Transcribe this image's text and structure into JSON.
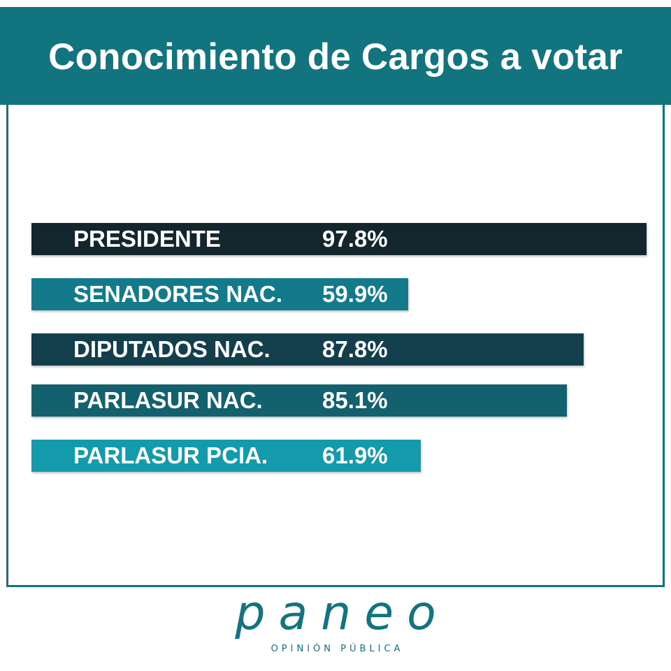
{
  "chart_data": {
    "type": "bar",
    "orientation": "horizontal",
    "title": "Conocimiento de Cargos a votar",
    "categories": [
      "PRESIDENTE",
      "SENADORES NAC.",
      "DIPUTADOS NAC.",
      "PARLASUR NAC.",
      "PARLASUR PCIA."
    ],
    "values": [
      97.8,
      59.9,
      87.8,
      85.1,
      61.9
    ],
    "value_labels": [
      "97.8%",
      "59.9%",
      "87.8%",
      "85.1%",
      "61.9%"
    ],
    "bar_colors": [
      "#13252d",
      "#137a8c",
      "#123f4b",
      "#13606f",
      "#139aab"
    ],
    "unit": "%",
    "xlim": [
      0,
      100
    ],
    "grid": false,
    "legend": "none"
  },
  "colors": {
    "accent": "#12747e",
    "title_text": "#ffffff"
  },
  "logo": {
    "name": "paneo",
    "tagline": "OPINIÓN PÚBLICA"
  }
}
